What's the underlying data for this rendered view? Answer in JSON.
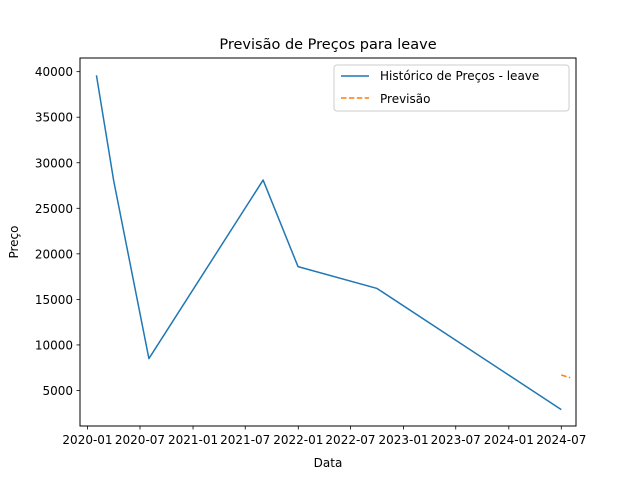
{
  "chart_data": {
    "type": "line",
    "title": "Previsão de Preços para leave",
    "xlabel": "Data",
    "ylabel": "Preço",
    "x_tick_labels": [
      "2020-01",
      "2020-07",
      "2021-01",
      "2021-07",
      "2022-01",
      "2022-07",
      "2023-01",
      "2023-07",
      "2024-01",
      "2024-07"
    ],
    "y_ticks": [
      5000,
      10000,
      15000,
      20000,
      25000,
      30000,
      35000,
      40000
    ],
    "y_tick_labels": [
      "5000",
      "10000",
      "15000",
      "20000",
      "25000",
      "30000",
      "35000",
      "40000"
    ],
    "ylim": [
      1100,
      41500
    ],
    "xlim": [
      "2019-12-06",
      "2024-08-21"
    ],
    "grid": false,
    "legend_position": "top-right",
    "series": [
      {
        "name": "Histórico de Preços - leave",
        "color": "#1f77b4",
        "style": "solid",
        "x": [
          "2020-02-01",
          "2020-04-01",
          "2020-08-01",
          "2021-09-01",
          "2021-12-31",
          "2022-10-01",
          "2024-07-01"
        ],
        "y": [
          39600,
          28000,
          8500,
          28100,
          18600,
          16200,
          2900
        ]
      },
      {
        "name": "Previsão",
        "color": "#ff7f0e",
        "style": "dashed",
        "x": [
          "2024-07-01",
          "2024-08-01"
        ],
        "y": [
          6700,
          6400
        ]
      }
    ]
  }
}
